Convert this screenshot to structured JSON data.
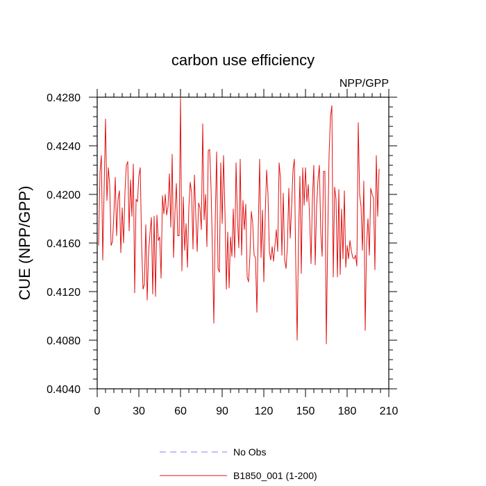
{
  "chart_data": {
    "type": "line",
    "title": "carbon use efficiency",
    "subtitle": "NPP/GPP",
    "xlabel": "",
    "ylabel": "CUE  (NPP/GPP)",
    "xlim": [
      0,
      210
    ],
    "ylim": [
      0.404,
      0.428
    ],
    "x_ticks": [
      0,
      30,
      60,
      90,
      120,
      150,
      180,
      210
    ],
    "x_tick_labels": [
      "0",
      "30",
      "60",
      "90",
      "120",
      "150",
      "180",
      "210"
    ],
    "y_ticks": [
      0.404,
      0.408,
      0.412,
      0.416,
      0.42,
      0.424,
      0.428
    ],
    "y_tick_labels": [
      "0.4040",
      "0.4080",
      "0.4120",
      "0.4160",
      "0.4200",
      "0.4240",
      "0.4280"
    ],
    "grid": false,
    "legend": {
      "position": "bottom-center",
      "entries": [
        {
          "label": "No Obs",
          "color": "#8080ff",
          "style": "dashed"
        },
        {
          "label": "B1850_001 (1-200)",
          "color": "#e01010",
          "style": "solid"
        }
      ]
    },
    "series": [
      {
        "name": "B1850_001 (1-200)",
        "color": "#e01010",
        "x_start": 1,
        "values": [
          0.4158,
          0.4218,
          0.4232,
          0.4146,
          0.4205,
          0.4262,
          0.4195,
          0.4222,
          0.4208,
          0.4158,
          0.4161,
          0.4183,
          0.4214,
          0.4166,
          0.4196,
          0.4203,
          0.4152,
          0.4189,
          0.416,
          0.4202,
          0.4224,
          0.4227,
          0.417,
          0.4212,
          0.4182,
          0.4225,
          0.4119,
          0.4196,
          0.4194,
          0.4215,
          0.4222,
          0.4158,
          0.4122,
          0.4126,
          0.4175,
          0.4113,
          0.4152,
          0.4168,
          0.4181,
          0.4118,
          0.4182,
          0.4116,
          0.4183,
          0.4162,
          0.4165,
          0.4131,
          0.4199,
          0.4184,
          0.42,
          0.4183,
          0.419,
          0.4217,
          0.4173,
          0.4233,
          0.4148,
          0.4185,
          0.4209,
          0.4166,
          0.4166,
          0.4279,
          0.4137,
          0.4198,
          0.4154,
          0.4176,
          0.414,
          0.4189,
          0.421,
          0.4201,
          0.4155,
          0.4216,
          0.4183,
          0.4153,
          0.4193,
          0.4189,
          0.4171,
          0.4258,
          0.4179,
          0.42,
          0.4157,
          0.4236,
          0.4237,
          0.4205,
          0.4153,
          0.4094,
          0.4178,
          0.4235,
          0.4139,
          0.4136,
          0.4226,
          0.4176,
          0.4232,
          0.4186,
          0.4122,
          0.4169,
          0.4123,
          0.4165,
          0.4149,
          0.4188,
          0.4148,
          0.4226,
          0.418,
          0.4156,
          0.4229,
          0.415,
          0.4195,
          0.4171,
          0.4192,
          0.4132,
          0.4128,
          0.415,
          0.4186,
          0.4176,
          0.415,
          0.4148,
          0.4103,
          0.4172,
          0.4229,
          0.4148,
          0.4187,
          0.4128,
          0.4183,
          0.422,
          0.42,
          0.4153,
          0.4146,
          0.4157,
          0.4145,
          0.4158,
          0.4171,
          0.4153,
          0.4226,
          0.4213,
          0.415,
          0.4201,
          0.4146,
          0.4139,
          0.4158,
          0.4205,
          0.4164,
          0.4189,
          0.422,
          0.4229,
          0.4143,
          0.408,
          0.4166,
          0.4215,
          0.4135,
          0.4222,
          0.4191,
          0.4222,
          0.4194,
          0.4208,
          0.418,
          0.4143,
          0.4197,
          0.4224,
          0.4142,
          0.4189,
          0.4212,
          0.4224,
          0.4169,
          0.4149,
          0.4219,
          0.4219,
          0.4077,
          0.4163,
          0.4233,
          0.4264,
          0.4273,
          0.4132,
          0.4206,
          0.4196,
          0.4132,
          0.4204,
          0.4134,
          0.4188,
          0.4147,
          0.4203,
          0.414,
          0.4158,
          0.4147,
          0.4162,
          0.4154,
          0.4148,
          0.4147,
          0.415,
          0.4141,
          0.4259,
          0.42,
          0.419,
          0.4154,
          0.4211,
          0.4088,
          0.4159,
          0.418,
          0.415,
          0.4205,
          0.42,
          0.4197,
          0.4138,
          0.4232,
          0.4182,
          0.4221
        ]
      },
      {
        "name": "No Obs",
        "color": "#8080ff",
        "values": []
      }
    ]
  }
}
